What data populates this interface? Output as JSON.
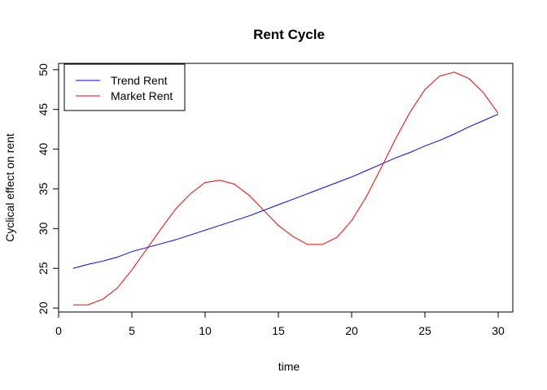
{
  "chart_data": {
    "type": "line",
    "title": "Rent Cycle",
    "xlabel": "time",
    "ylabel": "Cyclical effect on rent",
    "xlim": [
      0,
      31
    ],
    "ylim": [
      19.5,
      50.8
    ],
    "x_ticks": [
      0,
      5,
      10,
      15,
      20,
      25,
      30
    ],
    "y_ticks": [
      20,
      25,
      30,
      35,
      40,
      45,
      50
    ],
    "legend_position": "top-left",
    "x": [
      1,
      2,
      3,
      4,
      5,
      6,
      7,
      8,
      9,
      10,
      11,
      12,
      13,
      14,
      15,
      16,
      17,
      18,
      19,
      20,
      21,
      22,
      23,
      24,
      25,
      26,
      27,
      28,
      29,
      30
    ],
    "series": [
      {
        "name": "Trend Rent",
        "color": "#0000ff",
        "values": [
          25.0,
          25.5,
          25.9,
          26.4,
          27.1,
          27.6,
          28.1,
          28.6,
          29.2,
          29.8,
          30.4,
          31.0,
          31.6,
          32.3,
          33.0,
          33.7,
          34.4,
          35.1,
          35.8,
          36.5,
          37.3,
          38.1,
          38.9,
          39.6,
          40.4,
          41.1,
          41.9,
          42.8,
          43.6,
          44.4
        ]
      },
      {
        "name": "Market Rent",
        "color": "#ff0000",
        "values": [
          20.4,
          20.4,
          21.1,
          22.5,
          24.8,
          27.4,
          30.0,
          32.5,
          34.4,
          35.8,
          36.1,
          35.6,
          34.2,
          32.3,
          30.4,
          29.0,
          28.0,
          28.0,
          28.9,
          31.0,
          34.0,
          37.6,
          41.3,
          44.7,
          47.5,
          49.2,
          49.7,
          48.9,
          47.1,
          44.5
        ]
      }
    ]
  }
}
